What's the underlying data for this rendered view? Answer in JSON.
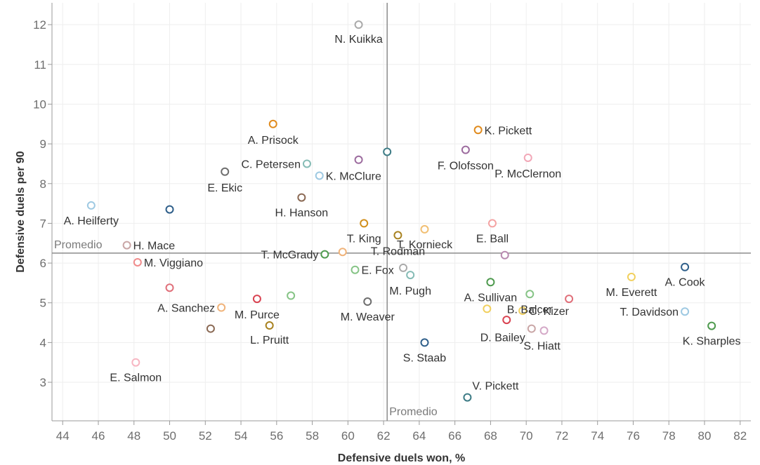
{
  "chart_data": {
    "type": "scatter",
    "xlabel": "Defensive duels won, %",
    "ylabel": "Defensive duels per 90",
    "xlim": [
      43.4,
      82.6
    ],
    "ylim": [
      2.03,
      12.55
    ],
    "x_ticks": [
      44,
      46,
      48,
      50,
      52,
      54,
      56,
      58,
      60,
      62,
      64,
      66,
      68,
      70,
      72,
      74,
      76,
      78,
      80,
      82
    ],
    "y_ticks": [
      3,
      4,
      5,
      6,
      7,
      8,
      9,
      10,
      11,
      12
    ],
    "grid": true,
    "ref_x": {
      "value": 62.2,
      "label": "Promedio"
    },
    "ref_y": {
      "value": 6.25,
      "label": "Promedio"
    },
    "points": [
      {
        "x": 60.6,
        "y": 12.0,
        "label": "N. Kuikka",
        "color": "#aaaaaa"
      },
      {
        "x": 55.8,
        "y": 9.5,
        "label": "A. Prisock",
        "color": "#e08a1c"
      },
      {
        "x": 67.3,
        "y": 9.35,
        "label": "K. Pickett",
        "color": "#e08a1c"
      },
      {
        "x": 66.6,
        "y": 8.85,
        "label": "F. Olofsson",
        "color": "#9c6b9e"
      },
      {
        "x": 70.1,
        "y": 8.65,
        "label": "P. McClernon",
        "color": "#f2a7b7"
      },
      {
        "x": 62.2,
        "y": 8.8,
        "label": "",
        "color": "#3e7c86"
      },
      {
        "x": 60.6,
        "y": 8.6,
        "label": "",
        "color": "#9c6b9e"
      },
      {
        "x": 57.7,
        "y": 8.5,
        "label": "C. Petersen",
        "color": "#86bcb6"
      },
      {
        "x": 58.4,
        "y": 8.2,
        "label": "K. McClure",
        "color": "#9ec9e2"
      },
      {
        "x": 53.1,
        "y": 8.3,
        "label": "E. Ekic",
        "color": "#6e6e6e"
      },
      {
        "x": 57.4,
        "y": 7.65,
        "label": "H. Hanson",
        "color": "#8b6a55"
      },
      {
        "x": 45.6,
        "y": 7.45,
        "label": "A. Heilferty",
        "color": "#9ec9e2"
      },
      {
        "x": 50.0,
        "y": 7.35,
        "label": "",
        "color": "#2f5f8a"
      },
      {
        "x": 60.9,
        "y": 7.0,
        "label": "T. King",
        "color": "#d18f1c"
      },
      {
        "x": 68.1,
        "y": 7.0,
        "label": "E. Ball",
        "color": "#f4a3a3"
      },
      {
        "x": 64.3,
        "y": 6.85,
        "label": "T. Kornieck",
        "color": "#f1bf73"
      },
      {
        "x": 62.8,
        "y": 6.7,
        "label": "T. Rodman",
        "color": "#a88220"
      },
      {
        "x": 47.6,
        "y": 6.45,
        "label": "H. Mace",
        "color": "#c9a6a6"
      },
      {
        "x": 59.7,
        "y": 6.28,
        "label": "",
        "color": "#f0b37a"
      },
      {
        "x": 58.7,
        "y": 6.22,
        "label": "T. McGrady",
        "color": "#4e9a4e"
      },
      {
        "x": 68.8,
        "y": 6.2,
        "label": "",
        "color": "#b88ab0"
      },
      {
        "x": 48.2,
        "y": 6.02,
        "label": "M. Viggiano",
        "color": "#f08c8c"
      },
      {
        "x": 63.1,
        "y": 5.88,
        "label": "",
        "color": "#aaaaaa"
      },
      {
        "x": 60.4,
        "y": 5.83,
        "label": "E. Fox",
        "color": "#86c486"
      },
      {
        "x": 63.5,
        "y": 5.7,
        "label": "M. Pugh",
        "color": "#86bcb6"
      },
      {
        "x": 78.9,
        "y": 5.9,
        "label": "A. Cook",
        "color": "#2f5f8a"
      },
      {
        "x": 75.9,
        "y": 5.65,
        "label": "M. Everett",
        "color": "#f1d05e"
      },
      {
        "x": 68.0,
        "y": 5.52,
        "label": "A. Sullivan",
        "color": "#4e9a4e"
      },
      {
        "x": 50.0,
        "y": 5.38,
        "label": "",
        "color": "#e0707a"
      },
      {
        "x": 70.2,
        "y": 5.22,
        "label": "B. Balcer",
        "color": "#86c486"
      },
      {
        "x": 56.8,
        "y": 5.18,
        "label": "",
        "color": "#86c486"
      },
      {
        "x": 54.9,
        "y": 5.1,
        "label": "M. Purce",
        "color": "#d94452"
      },
      {
        "x": 72.4,
        "y": 5.1,
        "label": "",
        "color": "#e0707a"
      },
      {
        "x": 61.1,
        "y": 5.03,
        "label": "M. Weaver",
        "color": "#6e6e6e"
      },
      {
        "x": 52.9,
        "y": 4.88,
        "label": "A. Sanchez",
        "color": "#f0b37a"
      },
      {
        "x": 67.8,
        "y": 4.85,
        "label": "",
        "color": "#f1d05e"
      },
      {
        "x": 69.8,
        "y": 4.8,
        "label": "C. Kizer",
        "color": "#f1d05e"
      },
      {
        "x": 78.9,
        "y": 4.78,
        "label": "T. Davidson",
        "color": "#9ec9e2"
      },
      {
        "x": 68.9,
        "y": 4.57,
        "label": "",
        "color": "#d94452"
      },
      {
        "x": 55.6,
        "y": 4.43,
        "label": "L. Pruitt",
        "color": "#a88220"
      },
      {
        "x": 80.4,
        "y": 4.42,
        "label": "K. Sharples",
        "color": "#4e9a4e"
      },
      {
        "x": 52.3,
        "y": 4.35,
        "label": "",
        "color": "#8b6a55"
      },
      {
        "x": 70.3,
        "y": 4.35,
        "label": "D. Bailey",
        "color": "#c9a6a6"
      },
      {
        "x": 71.0,
        "y": 4.3,
        "label": "S. Hiatt",
        "color": "#d4a8c7"
      },
      {
        "x": 64.3,
        "y": 4.0,
        "label": "S. Staab",
        "color": "#2f5f8a"
      },
      {
        "x": 48.1,
        "y": 3.5,
        "label": "E. Salmon",
        "color": "#f7b6c2"
      },
      {
        "x": 66.7,
        "y": 2.62,
        "label": "V. Pickett",
        "color": "#3e7c86"
      }
    ]
  }
}
